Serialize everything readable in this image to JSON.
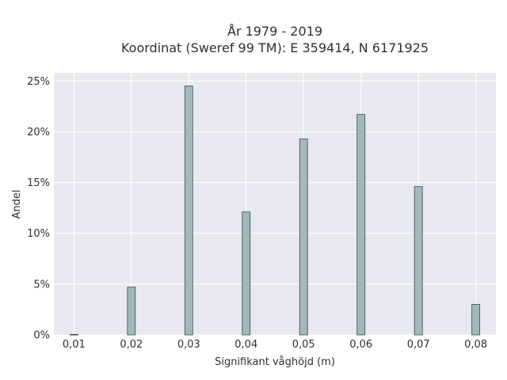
{
  "chart_data": {
    "type": "bar",
    "title_lines": [
      "År 1979 - 2019",
      "Koordinat (Sweref 99 TM): E 359414, N 6171925"
    ],
    "xlabel": "Signifikant våghöjd (m)",
    "ylabel": "Andel",
    "x": [
      0.01,
      0.02,
      0.03,
      0.04,
      0.05,
      0.06,
      0.07,
      0.08
    ],
    "x_tick_labels": [
      "0,01",
      "0,02",
      "0,03",
      "0,04",
      "0,05",
      "0,06",
      "0,07",
      "0,08"
    ],
    "values": [
      0.05,
      4.7,
      24.5,
      12.1,
      19.3,
      21.7,
      14.6,
      3.0
    ],
    "y_ticks": [
      0,
      5,
      10,
      15,
      20,
      25
    ],
    "y_tick_labels": [
      "0%",
      "5%",
      "10%",
      "15%",
      "20%",
      "25%"
    ],
    "xlim": [
      0.0065,
      0.0835
    ],
    "ylim": [
      0,
      25.8
    ],
    "grid": true,
    "colors": {
      "plot_background": "#e8e9f0",
      "grid": "#ffffff",
      "bar_fill": "#a3b8b8",
      "bar_stroke": "#3a4a4a"
    }
  }
}
